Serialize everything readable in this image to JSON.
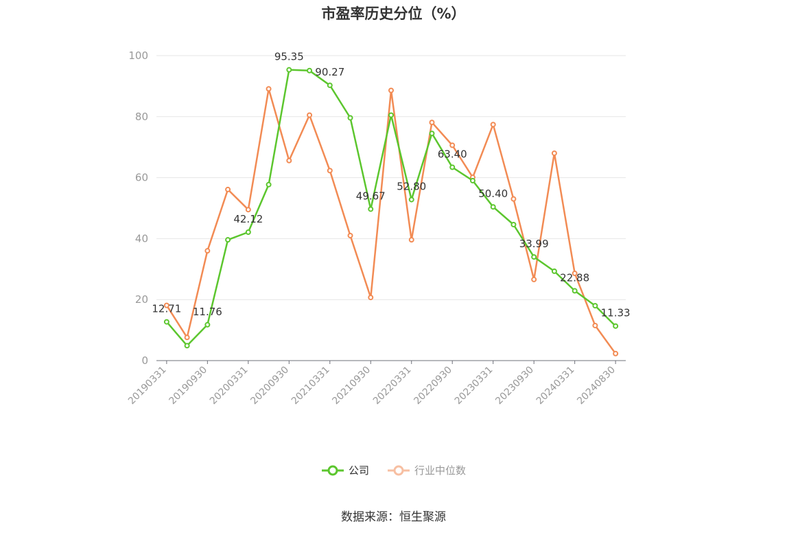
{
  "chart_data": {
    "type": "line",
    "title": "市盈率历史分位（%）",
    "source": "数据来源：恒生聚源",
    "ylim": [
      0,
      100
    ],
    "yticks": [
      0,
      20,
      40,
      60,
      80,
      100
    ],
    "x": [
      "20190331",
      "20190630",
      "20190930",
      "20191231",
      "20200331",
      "20200630",
      "20200930",
      "20201231",
      "20210331",
      "20210630",
      "20210930",
      "20211231",
      "20220331",
      "20220630",
      "20220930",
      "20221231",
      "20230331",
      "20230630",
      "20230930",
      "20231231",
      "20240331",
      "20240630",
      "20240830"
    ],
    "xticks": [
      "20190331",
      "20190930",
      "20200331",
      "20200930",
      "20210331",
      "20210930",
      "20220331",
      "20220930",
      "20230331",
      "20230930",
      "20240331",
      "20240830"
    ],
    "grid": true,
    "legend_position": "bottom",
    "series": [
      {
        "name": "公司",
        "color": "#5cc62e",
        "values": [
          12.71,
          4.9,
          11.76,
          39.6,
          42.12,
          57.7,
          95.35,
          95.1,
          90.27,
          79.6,
          49.67,
          80.5,
          52.8,
          74.5,
          63.4,
          59.0,
          50.4,
          44.6,
          33.99,
          29.3,
          22.88,
          18.0,
          11.33
        ],
        "labels": [
          "12.71",
          "",
          "11.76",
          "",
          "42.12",
          "",
          "95.35",
          "",
          "90.27",
          "",
          "49.67",
          "",
          "52.80",
          "",
          "63.40",
          "",
          "50.40",
          "",
          "33.99",
          "",
          "22.88",
          "",
          "11.33"
        ]
      },
      {
        "name": "行业中位数",
        "color": "#f28b54",
        "values": [
          18.1,
          7.6,
          36.0,
          56.1,
          49.5,
          89.1,
          65.6,
          80.5,
          62.3,
          41.0,
          20.7,
          88.6,
          39.6,
          78.1,
          70.6,
          60.1,
          77.4,
          53.0,
          26.6,
          68.0,
          28.6,
          11.5,
          2.3
        ]
      }
    ]
  }
}
